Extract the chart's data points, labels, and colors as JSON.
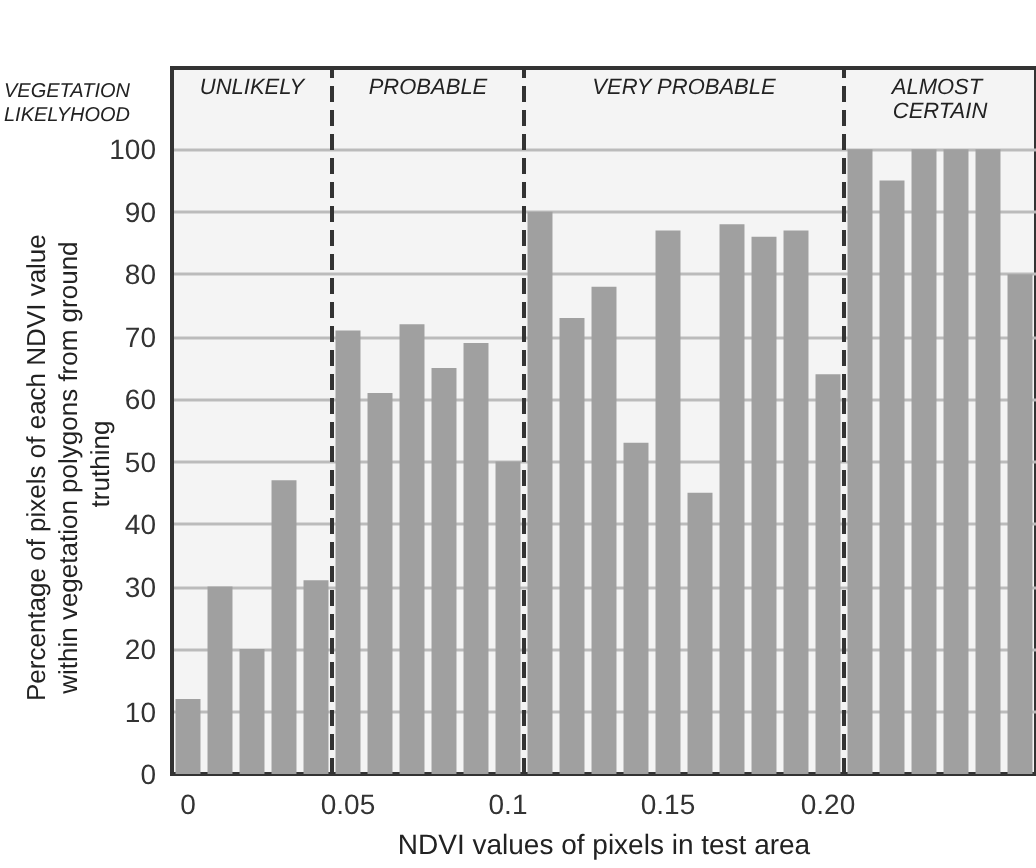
{
  "chart_data": {
    "type": "bar",
    "xlabel": "NDVI values of pixels in test area",
    "ylabel": "Percentage of pixels of each NDVI value within vegetation polygons from ground truthing",
    "x": [
      0,
      0.01,
      0.02,
      0.03,
      0.04,
      0.05,
      0.06,
      0.07,
      0.08,
      0.09,
      0.1,
      0.11,
      0.12,
      0.13,
      0.14,
      0.15,
      0.16,
      0.17,
      0.18,
      0.19,
      0.2,
      0.21,
      0.22,
      0.23,
      0.24,
      0.25,
      0.26
    ],
    "values": [
      12,
      30,
      20,
      47,
      31,
      71,
      61,
      72,
      65,
      69,
      50,
      90,
      73,
      78,
      53,
      87,
      45,
      88,
      86,
      87,
      64,
      100,
      95,
      100,
      100,
      100,
      80
    ],
    "color": "#a0a0a0",
    "xlim": [
      -0.005,
      0.265
    ],
    "xticks": [
      0,
      0.05,
      0.1,
      0.15,
      {
        "value": 0.2,
        "label": "0.20"
      }
    ],
    "ylim": [
      0,
      113
    ],
    "yticks": [
      0,
      10,
      20,
      30,
      40,
      50,
      60,
      70,
      80,
      90,
      100
    ],
    "grid": "y",
    "ref_lines": [
      {
        "axis": "x",
        "value": 0.045,
        "line_style": "dashed",
        "color": "#333333"
      },
      {
        "axis": "x",
        "value": 0.105,
        "line_style": "dashed",
        "color": "#333333"
      },
      {
        "axis": "x",
        "value": 0.205,
        "line_style": "dashed",
        "color": "#333333"
      }
    ],
    "bands": [
      {
        "axis": "x",
        "from": -0.005,
        "to": 0.045,
        "label": "UNLIKELY",
        "color": "#f4f4f4"
      },
      {
        "axis": "x",
        "from": 0.045,
        "to": 0.105,
        "label": "PROBABLE",
        "color": "#f4f4f4"
      },
      {
        "axis": "x",
        "from": 0.105,
        "to": 0.205,
        "label": "VERY PROBABLE",
        "color": "#f4f4f4"
      },
      {
        "axis": "x",
        "from": 0.205,
        "to": 0.265,
        "label": "ALMOST CERTAIN",
        "color": "#f4f4f4"
      }
    ],
    "annotations": [
      "VEGETATION LIKELYHOOD"
    ]
  }
}
